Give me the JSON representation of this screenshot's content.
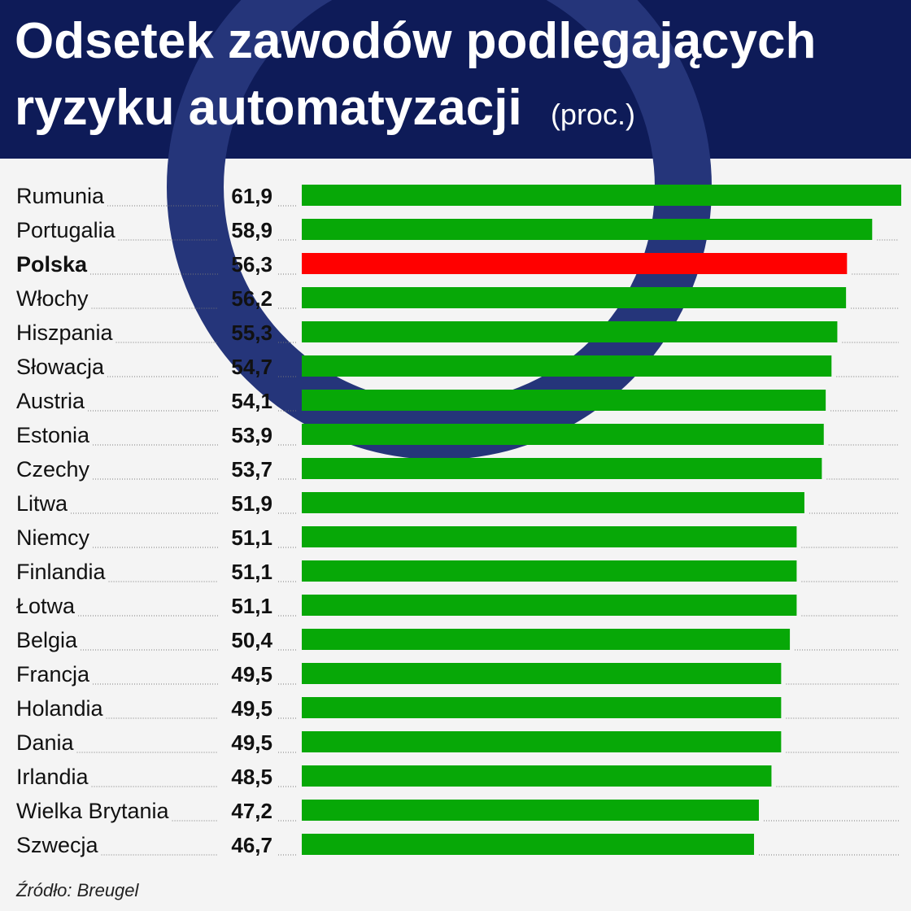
{
  "chart_data": {
    "type": "bar",
    "orientation": "horizontal",
    "title": "Odsetek zawodów podlegających ryzyku automatyzacji",
    "subtitle": "(proc.)",
    "source": "Źródło: Breugel",
    "categories": [
      "Rumunia",
      "Portugalia",
      "Polska",
      "Włochy",
      "Hiszpania",
      "Słowacja",
      "Austria",
      "Estonia",
      "Czechy",
      "Litwa",
      "Niemcy",
      "Finlandia",
      "Łotwa",
      "Belgia",
      "Francja",
      "Holandia",
      "Dania",
      "Irlandia",
      "Wielka Brytania",
      "Szwecja"
    ],
    "values": [
      61.9,
      58.9,
      56.3,
      56.2,
      55.3,
      54.7,
      54.1,
      53.9,
      53.7,
      51.9,
      51.1,
      51.1,
      51.1,
      50.4,
      49.5,
      49.5,
      49.5,
      48.5,
      47.2,
      46.7
    ],
    "value_labels": [
      "61,9",
      "58,9",
      "56,3",
      "56,2",
      "55,3",
      "54,7",
      "54,1",
      "53,9",
      "53,7",
      "51,9",
      "51,1",
      "51,1",
      "51,1",
      "50,4",
      "49,5",
      "49,5",
      "49,5",
      "48,5",
      "47,2",
      "46,7"
    ],
    "colors": [
      "#07a807",
      "#07a807",
      "#ff0000",
      "#07a807",
      "#07a807",
      "#07a807",
      "#07a807",
      "#07a807",
      "#07a807",
      "#07a807",
      "#07a807",
      "#07a807",
      "#07a807",
      "#07a807",
      "#07a807",
      "#07a807",
      "#07a807",
      "#07a807",
      "#07a807",
      "#07a807"
    ]
  }
}
